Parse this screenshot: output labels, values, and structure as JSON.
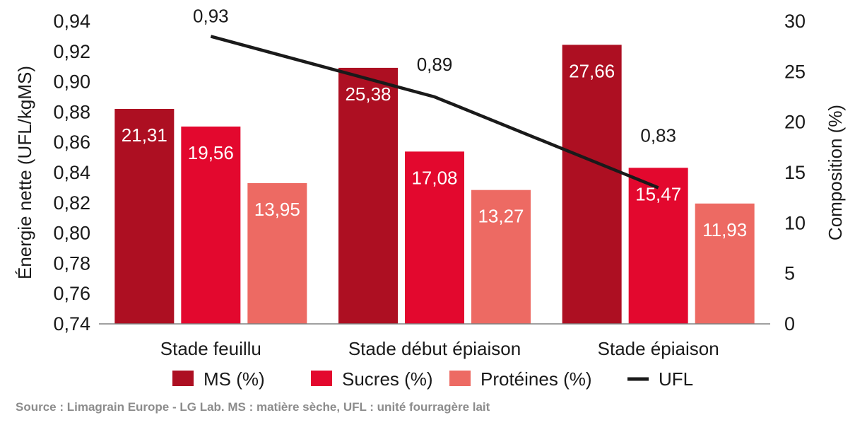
{
  "chart_data": {
    "type": "bar",
    "categories": [
      "Stade feuillu",
      "Stade début épiaison",
      "Stade épiaison"
    ],
    "series": [
      {
        "name": "MS (%)",
        "kind": "bar",
        "axis": "right",
        "color": "#ad0f22",
        "values": [
          21.31,
          25.38,
          27.66
        ],
        "labels": [
          "21,31",
          "25,38",
          "27,66"
        ]
      },
      {
        "name": "Sucres (%)",
        "kind": "bar",
        "axis": "right",
        "color": "#e3082e",
        "values": [
          19.56,
          17.08,
          15.47
        ],
        "labels": [
          "19,56",
          "17,08",
          "15,47"
        ]
      },
      {
        "name": "Protéines (%)",
        "kind": "bar",
        "axis": "right",
        "color": "#ed6a63",
        "values": [
          13.95,
          13.27,
          11.93
        ],
        "labels": [
          "13,95",
          "13,27",
          "11,93"
        ]
      },
      {
        "name": "UFL",
        "kind": "line",
        "axis": "left",
        "color": "#1a1a1a",
        "values": [
          0.93,
          0.89,
          0.83
        ],
        "labels": [
          "0,93",
          "0,89",
          "0,83"
        ]
      }
    ],
    "ylabel_left": "Énergie nette (UFL/kgMS)",
    "ylabel_right": "Composition (%)",
    "ylim_left": [
      0.74,
      0.94
    ],
    "ylim_right": [
      0,
      30
    ],
    "yticks_left": [
      "0,94",
      "0,92",
      "0,90",
      "0,88",
      "0,86",
      "0,84",
      "0,82",
      "0,80",
      "0,78",
      "0,76",
      "0,74"
    ],
    "yticks_right": [
      "30",
      "25",
      "20",
      "15",
      "10",
      "5",
      "0"
    ],
    "grid": false,
    "legend_position": "bottom",
    "source": "Source : Limagrain Europe - LG Lab. MS : matière sèche,  UFL : unité fourragère lait"
  }
}
